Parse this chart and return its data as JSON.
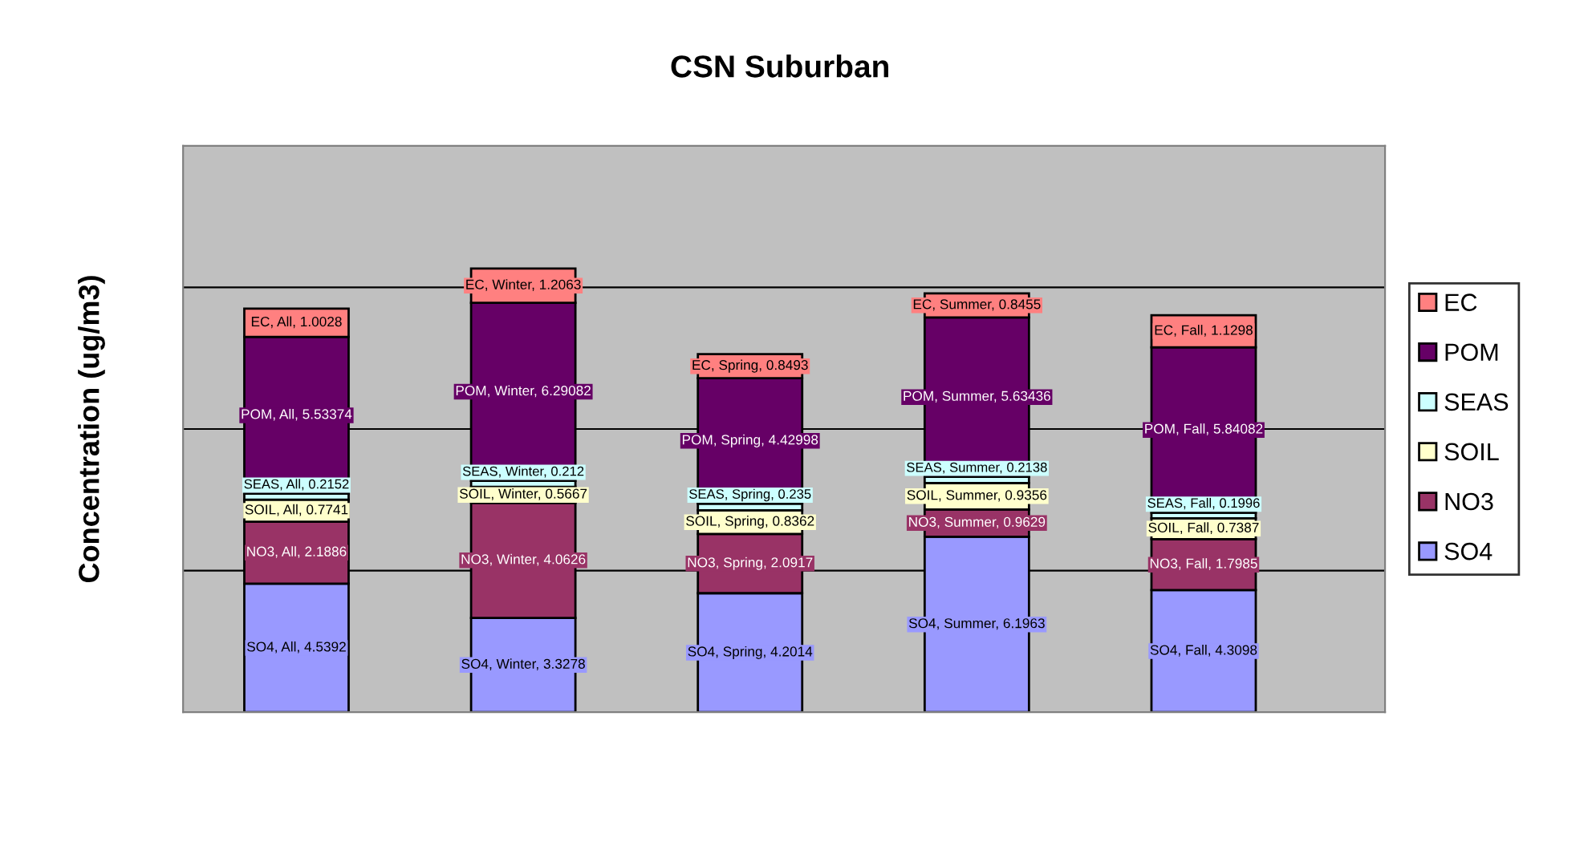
{
  "chart_data": {
    "type": "bar",
    "title": "CSN Suburban",
    "ylabel": "Concentration (ug/m3)",
    "stacked": true,
    "categories": [
      null,
      null,
      null,
      null,
      null
    ],
    "ylim": [
      0,
      20
    ],
    "yticks": [
      {
        "value": 0,
        "label": null
      },
      {
        "value": 5,
        "label": null
      },
      {
        "value": 10,
        "label": null
      },
      {
        "value": 15,
        "label": null
      },
      {
        "value": 20,
        "label": null
      }
    ],
    "tick_labels": false,
    "grid": "y",
    "legend": "right",
    "series": [
      {
        "name": "SO4",
        "color": "#9999ff",
        "values": [
          4.5392,
          3.3278,
          4.2014,
          6.1963,
          4.3098
        ],
        "value_labels": [
          "SO4, All, 4.5392",
          "SO4, Winter, 3.3278",
          "SO4, Spring, 4.2014",
          "SO4, Summer, 6.1963",
          "SO4, Fall, 4.3098"
        ]
      },
      {
        "name": "NO3",
        "color": "#993366",
        "values": [
          2.1886,
          4.0626,
          2.0917,
          0.9629,
          1.7985
        ],
        "value_labels": [
          "NO3, All, 2.1886",
          "NO3, Winter, 4.0626",
          "NO3, Spring, 2.0917",
          "NO3, Summer, 0.9629",
          "NO3, Fall, 1.7985"
        ]
      },
      {
        "name": "SOIL",
        "color": "#ffffcc",
        "values": [
          0.7741,
          0.5667,
          0.8362,
          0.9356,
          0.7387
        ],
        "value_labels": [
          "SOIL, All, 0.7741",
          "SOIL, Winter, 0.5667",
          "SOIL, Spring, 0.8362",
          "SOIL, Summer, 0.9356",
          "SOIL, Fall, 0.7387"
        ]
      },
      {
        "name": "SEAS",
        "color": "#ccffff",
        "values": [
          0.2152,
          0.212,
          0.235,
          0.2138,
          0.1996
        ],
        "value_labels": [
          "SEAS, All, 0.2152",
          "SEAS, Winter, 0.212",
          "SEAS, Spring, 0.235",
          "SEAS, Summer, 0.2138",
          "SEAS, Fall, 0.1996"
        ]
      },
      {
        "name": "POM",
        "color": "#660066",
        "values": [
          5.53374,
          6.29082,
          4.42998,
          5.63436,
          5.84082
        ],
        "value_labels": [
          "POM, All, 5.53374",
          "POM, Winter, 6.29082",
          "POM, Spring, 4.42998",
          "POM, Summer, 5.63436",
          "POM, Fall, 5.84082"
        ]
      },
      {
        "name": "EC",
        "color": "#ff8080",
        "values": [
          1.0028,
          1.2063,
          0.8493,
          0.8455,
          1.1298
        ],
        "value_labels": [
          "EC, All, 1.0028",
          "EC, Winter, 1.2063",
          "EC, Spring, 0.8493",
          "EC, Summer, 0.8455",
          "EC, Fall, 1.1298"
        ]
      }
    ]
  }
}
